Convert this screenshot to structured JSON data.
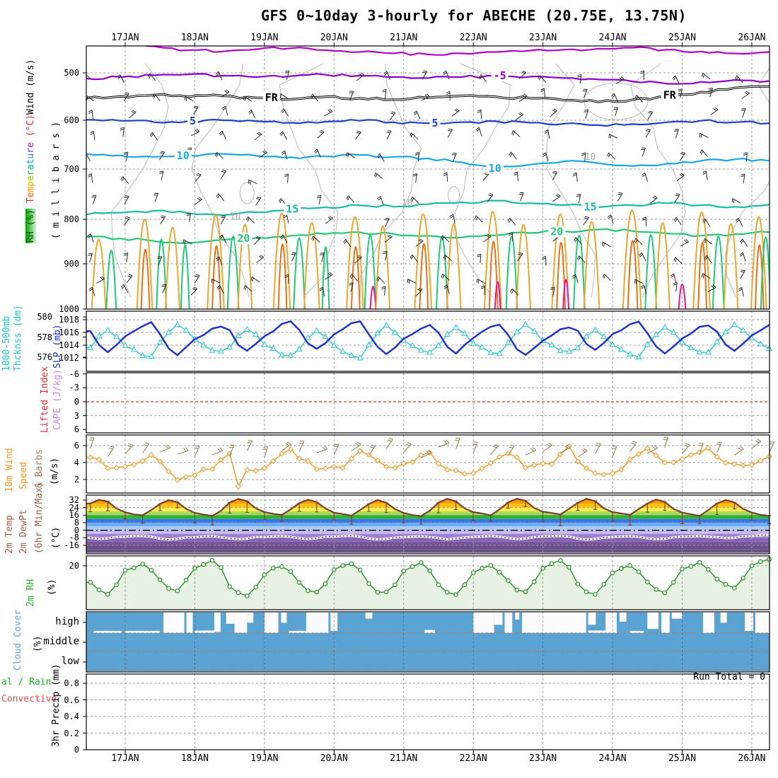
{
  "title": "GFS 0~10day 3-hourly for ABECHE (20.75E, 13.75N)",
  "days": [
    "17JAN",
    "18JAN",
    "19JAN",
    "20JAN",
    "21JAN",
    "22JAN",
    "23JAN",
    "24JAN",
    "25JAN",
    "26JAN"
  ],
  "axis_labels": {
    "upper_rh": "RH (%)",
    "upper_temperature": "Temperature",
    "upper_degc": "(°C)",
    "upper_wind": "Wind (m/s)",
    "upper_millibars": "(millibars)",
    "thickness_line1": "1000-500mb",
    "thickness_line2": "Thcknss (dm)",
    "slp": "SLP (mb)",
    "lifted_index": "Lifted Index",
    "cape": "CAPE (J/kg)",
    "wind10m_1": "10m Wind",
    "wind10m_2": "Speed",
    "wind10m_3": "& Barbs",
    "wind10m_4": "(m/s)",
    "temp2m_1": "2m Temp",
    "temp2m_2": "2m DewPt",
    "temp2m_3": "(6hr Min/Max)",
    "temp2m_4": "(°C)",
    "rh2m": "2m RH",
    "rh2m_pct": "(%)",
    "cloud": "Cloud Cover",
    "cloud_pct": "(%)",
    "precip_total": "al / Rain",
    "precip_conv": "Convective",
    "precip_axis": "3hr Precip (mm)"
  },
  "temperature_letters": [
    [
      "T",
      "#ff2000"
    ],
    [
      "e",
      "#ff6000"
    ],
    [
      "m",
      "#ff9800"
    ],
    [
      "p",
      "#d8b400"
    ],
    [
      "e",
      "#90c800"
    ],
    [
      "r",
      "#30b830"
    ],
    [
      "a",
      "#00b080"
    ],
    [
      "t",
      "#00a0c8"
    ],
    [
      "u",
      "#3878e0"
    ],
    [
      "r",
      "#6848d0"
    ],
    [
      "e",
      "#9818c8"
    ]
  ],
  "ticks": {
    "pressure": [
      500,
      600,
      700,
      800,
      900,
      1000
    ],
    "slp": [
      1018,
      1016,
      1014,
      1012
    ],
    "thickness": [
      580,
      578,
      576
    ],
    "lifted_index": [
      -6,
      -3,
      0,
      3,
      6
    ],
    "wind10m": [
      6,
      4,
      2
    ],
    "temp2m": [
      32,
      24,
      16,
      8,
      0,
      -8,
      -16
    ],
    "rh2m": [
      20
    ],
    "cloud": [
      "high",
      "middle",
      "low"
    ],
    "precip": [
      0.8,
      0.6,
      0.4,
      0.2,
      0
    ]
  },
  "annotations": {
    "run_total": "Run Total = 0",
    "fr": "FR",
    "rh_contour_label": "10"
  },
  "colors": {
    "grid": "#9a9a9a",
    "cloud_grid": "#b08060",
    "gray_contour": "#b8b8b8",
    "slp": "#2233cc",
    "thickness": "#22c6c6",
    "li_zero": "#e03030",
    "wind10m": "#f09820",
    "barb_khaki": "#97835c",
    "barb_black": "#282828",
    "temp_line": "#7a4030",
    "dew_line": "#8a4a3a",
    "rh2m": "#2d8f2d",
    "rh2m_fill": "#e7f2e3",
    "cloud_fill": "#5aa3d2",
    "arch": {
      "o": "#e8a830",
      "d": "#e87018",
      "g": "#20c878",
      "m": "#e81888"
    }
  },
  "chart_data": {
    "type": "meteogram",
    "x_axis": {
      "days": [
        "17JAN",
        "18JAN",
        "19JAN",
        "20JAN",
        "21JAN",
        "22JAN",
        "23JAN",
        "24JAN",
        "25JAN",
        "26JAN"
      ],
      "start_offset_days": -0.5,
      "end_offset_days": 9.25,
      "step_hours": 3
    },
    "upper_air": {
      "pressure_ticks": [
        500,
        600,
        700,
        800,
        900,
        1000
      ],
      "contours": [
        {
          "name": "temp-10",
          "label": "",
          "color": "#b400c8",
          "width": 2.2,
          "values": [
            438,
            436,
            444,
            452,
            455,
            450,
            448,
            452,
            456,
            459,
            461,
            459,
            456,
            453,
            451,
            449,
            447,
            451,
            455,
            459,
            456
          ],
          "labels": []
        },
        {
          "name": "temp-5",
          "label": "-5",
          "color": "#9000cc",
          "width": 2.2,
          "values": [
            512,
            509,
            505,
            503,
            506,
            509,
            507,
            504,
            506,
            509,
            511,
            509,
            506,
            508,
            511,
            514,
            518,
            523,
            519,
            515,
            517
          ],
          "labels": [
            5.38
          ]
        },
        {
          "name": "freezing-level",
          "label": "FR",
          "color": "#000000",
          "width": 1.1,
          "double": true,
          "values": [
            552,
            548,
            545,
            549,
            547,
            551,
            554,
            549,
            552,
            555,
            551,
            547,
            549,
            552,
            556,
            560,
            555,
            548,
            539,
            530,
            527
          ],
          "labels": [
            2.1,
            7.82
          ]
        },
        {
          "name": "temp5",
          "label": "5",
          "color": "#2040cc",
          "width": 2.2,
          "values": [
            599,
            601,
            604,
            602,
            600,
            602,
            605,
            603,
            601,
            604,
            606,
            604,
            602,
            605,
            607,
            610,
            608,
            604,
            601,
            604,
            606
          ],
          "labels": [
            0.97,
            4.45
          ]
        },
        {
          "name": "temp10",
          "label": "10",
          "color": "#18a8e8",
          "width": 2.2,
          "values": [
            669,
            672,
            675,
            672,
            669,
            673,
            676,
            674,
            671,
            675,
            678,
            686,
            699,
            691,
            684,
            688,
            694,
            689,
            683,
            680,
            683
          ],
          "labels": [
            0.83,
            5.31
          ]
        },
        {
          "name": "temp15",
          "label": "15",
          "color": "#18bca0",
          "width": 2.2,
          "values": [
            791,
            787,
            783,
            788,
            792,
            786,
            780,
            776,
            772,
            775,
            770,
            766,
            763,
            768,
            772,
            776,
            772,
            768,
            772,
            775,
            771
          ],
          "labels": [
            2.4,
            6.68
          ]
        },
        {
          "name": "temp20",
          "label": "20",
          "color": "#20c878",
          "width": 2.2,
          "values": [
            839,
            843,
            849,
            853,
            846,
            841,
            837,
            833,
            829,
            833,
            837,
            841,
            836,
            831,
            827,
            823,
            827,
            832,
            837,
            833,
            829
          ],
          "labels": [
            1.7,
            6.2
          ]
        }
      ],
      "rh_gray_labels": [
        [
          1.58,
          795
        ],
        [
          4.05,
          768
        ],
        [
          6.68,
          675
        ]
      ],
      "surface_arches": [
        [
          -0.38,
          0.1,
          845,
          "o"
        ],
        [
          -0.2,
          0.07,
          870,
          "g"
        ],
        [
          0.28,
          0.11,
          800,
          "o"
        ],
        [
          0.29,
          0.06,
          868,
          "d"
        ],
        [
          0.52,
          0.07,
          845,
          "g"
        ],
        [
          0.68,
          0.1,
          818,
          "o"
        ],
        [
          0.86,
          0.06,
          858,
          "g"
        ],
        [
          1.3,
          0.12,
          792,
          "o"
        ],
        [
          1.31,
          0.06,
          860,
          "d"
        ],
        [
          1.55,
          0.08,
          838,
          "g"
        ],
        [
          1.72,
          0.1,
          812,
          "o"
        ],
        [
          2.25,
          0.12,
          788,
          "o"
        ],
        [
          2.26,
          0.06,
          856,
          "d"
        ],
        [
          2.5,
          0.08,
          842,
          "g"
        ],
        [
          2.68,
          0.11,
          808,
          "o"
        ],
        [
          2.88,
          0.05,
          862,
          "g"
        ],
        [
          3.3,
          0.12,
          795,
          "o"
        ],
        [
          3.31,
          0.06,
          862,
          "d"
        ],
        [
          3.52,
          0.08,
          835,
          "g"
        ],
        [
          3.56,
          0.04,
          950,
          "m"
        ],
        [
          3.7,
          0.1,
          815,
          "o"
        ],
        [
          4.28,
          0.12,
          790,
          "o"
        ],
        [
          4.29,
          0.06,
          855,
          "d"
        ],
        [
          4.55,
          0.08,
          840,
          "g"
        ],
        [
          4.72,
          0.1,
          810,
          "o"
        ],
        [
          5.28,
          0.12,
          785,
          "o"
        ],
        [
          5.29,
          0.06,
          850,
          "d"
        ],
        [
          5.35,
          0.04,
          940,
          "m"
        ],
        [
          5.55,
          0.08,
          838,
          "g"
        ],
        [
          5.72,
          0.1,
          812,
          "o"
        ],
        [
          6.25,
          0.12,
          790,
          "o"
        ],
        [
          6.26,
          0.06,
          852,
          "d"
        ],
        [
          6.33,
          0.04,
          935,
          "m"
        ],
        [
          6.52,
          0.08,
          836,
          "g"
        ],
        [
          6.7,
          0.11,
          806,
          "o"
        ],
        [
          7.28,
          0.13,
          782,
          "o"
        ],
        [
          7.29,
          0.07,
          848,
          "d"
        ],
        [
          7.55,
          0.08,
          835,
          "g"
        ],
        [
          7.72,
          0.1,
          808,
          "o"
        ],
        [
          8.0,
          0.05,
          945,
          "m"
        ],
        [
          8.28,
          0.12,
          786,
          "o"
        ],
        [
          8.29,
          0.06,
          852,
          "d"
        ],
        [
          8.52,
          0.08,
          838,
          "g"
        ],
        [
          8.7,
          0.1,
          810,
          "o"
        ],
        [
          9.1,
          0.11,
          795,
          "o"
        ],
        [
          9.11,
          0.06,
          858,
          "d"
        ],
        [
          9.2,
          0.07,
          840,
          "g"
        ]
      ]
    },
    "slp": {
      "units": "mb",
      "template": [
        1015.2,
        1016.0,
        1016.9,
        1017.3,
        1016.0,
        1013.8,
        1012.8,
        1013.9
      ],
      "day_adj": [
        0.2,
        -0.3,
        0.3,
        0.5,
        -0.2,
        0.0,
        -0.4,
        0.4,
        -0.1,
        0.2
      ]
    },
    "thickness": {
      "units": "dm",
      "template": [
        577.4,
        576.9,
        576.4,
        576.3,
        577.1,
        578.2,
        578.9,
        578.3
      ],
      "day_adj": [
        -0.2,
        0.3,
        -0.1,
        -0.3,
        0.2,
        0.0,
        0.3,
        -0.2,
        0.1,
        0.4
      ]
    },
    "lifted_index": {
      "range": [
        -6,
        6
      ],
      "zero_line": 0,
      "values": "off-scale (none plotted)"
    },
    "wind10m": {
      "units": "m/s",
      "template": [
        3.3,
        3.7,
        4.4,
        5.0,
        4.5,
        3.8,
        3.1,
        2.9
      ],
      "day_adj": [
        0.2,
        -0.8,
        0.3,
        0.0,
        0.2,
        -0.3,
        0.5,
        -0.2,
        0.9,
        0.5
      ],
      "dips": [
        {
          "t": 1.625,
          "v": 1.2
        }
      ]
    },
    "temp2m": {
      "units": "C",
      "template": [
        19,
        17,
        15.5,
        21.5,
        28.5,
        32.5,
        30,
        23
      ],
      "day_adj": [
        0,
        -0.5,
        0.5,
        0,
        -0.5,
        0.5,
        1,
        0.5,
        0,
        -0.5
      ],
      "bands": [
        [
          36,
          "#f85c04"
        ],
        [
          32,
          "#fc9c04"
        ],
        [
          28,
          "#fcc404"
        ],
        [
          24,
          "#f8ec54"
        ],
        [
          20,
          "#a8dc54"
        ],
        [
          16,
          "#2cb42c"
        ],
        [
          12,
          "#3874ec"
        ],
        [
          8,
          "#6cacf4"
        ],
        [
          4,
          "#acccf8"
        ],
        [
          0,
          "#c8b8ec"
        ],
        [
          -4,
          "#9c80d8"
        ],
        [
          -8,
          "#8464b8"
        ],
        [
          -12,
          "#74589c"
        ],
        [
          -16,
          "#685088"
        ],
        [
          -20,
          "#685088"
        ]
      ]
    },
    "dewpt2m": {
      "units": "C",
      "template": [
        -7,
        -6.5,
        -6,
        -7,
        -8.5,
        -9.5,
        -9,
        -7.5
      ],
      "day_adj": [
        0.3,
        -0.3,
        0,
        0.3,
        -0.3,
        0,
        0.3,
        -0.3,
        0,
        1
      ]
    },
    "rh2m": {
      "units": "%",
      "template": [
        17.5,
        19.5,
        21,
        18,
        12,
        8.5,
        7.5,
        11.5
      ],
      "day_adj": [
        0,
        1.5,
        -1,
        0.5,
        0,
        -0.5,
        1,
        -0.5,
        0.5,
        2.5
      ]
    },
    "cloud_cover": {
      "rows": [
        "high",
        "middle",
        "low"
      ],
      "top_bars": [
        [
          0.55,
          0.85,
          1
        ],
        [
          0.88,
          0.97,
          1
        ],
        [
          1.28,
          1.37,
          0.95
        ],
        [
          1.45,
          1.57,
          0.55
        ],
        [
          1.57,
          1.75,
          1
        ],
        [
          1.75,
          1.84,
          0.5
        ],
        [
          2.0,
          2.2,
          1
        ],
        [
          2.24,
          2.32,
          0.5
        ],
        [
          2.6,
          2.92,
          1
        ],
        [
          2.95,
          3.05,
          0.9
        ],
        [
          3.45,
          3.55,
          0.3
        ],
        [
          5.0,
          5.3,
          1
        ],
        [
          5.3,
          5.42,
          0.6
        ],
        [
          5.45,
          5.56,
          1
        ],
        [
          5.6,
          5.66,
          0.35
        ],
        [
          5.7,
          6.62,
          1
        ],
        [
          6.65,
          6.76,
          0.6
        ],
        [
          6.9,
          7.06,
          1
        ],
        [
          7.1,
          7.2,
          0.45
        ],
        [
          7.5,
          7.66,
          0.8
        ],
        [
          7.7,
          7.82,
          1
        ],
        [
          7.85,
          8.0,
          0.3
        ],
        [
          8.3,
          8.46,
          1
        ],
        [
          8.55,
          8.64,
          0.5
        ],
        [
          8.9,
          9.02,
          0.9
        ],
        [
          9.05,
          9.26,
          1
        ]
      ],
      "bottom_strips": [
        [
          -0.45,
          -0.05,
          0.1
        ],
        [
          0.0,
          0.5,
          0.1
        ],
        [
          1.0,
          1.28,
          0.12
        ],
        [
          2.35,
          2.6,
          0.1
        ],
        [
          4.3,
          4.45,
          0.15
        ],
        [
          6.65,
          6.9,
          0.12
        ],
        [
          7.25,
          7.45,
          0.1
        ]
      ]
    },
    "precip3hr": {
      "units": "mm",
      "ylim": [
        0,
        0.9
      ],
      "values": [],
      "run_total": 0
    }
  }
}
